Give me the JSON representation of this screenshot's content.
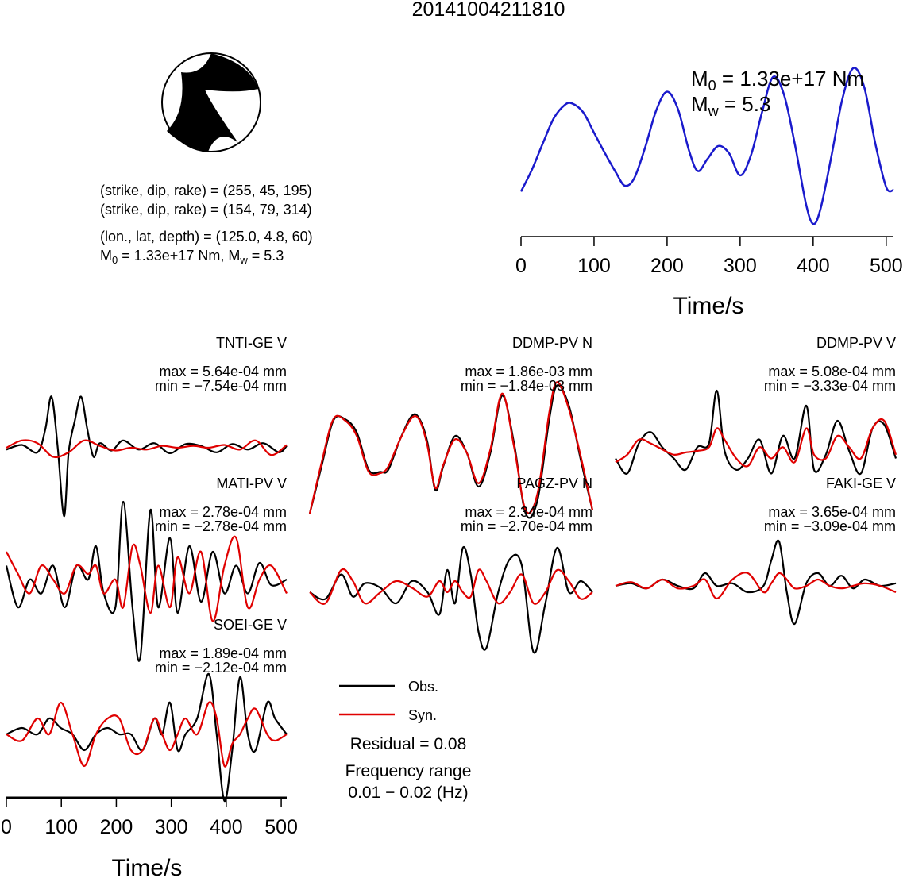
{
  "event_id": "20141004211810",
  "focal_mechanism": {
    "plane1": "(strike, dip, rake) = (255, 45, 195)",
    "plane2": "(strike, dip, rake) = (154, 79, 314)",
    "location": "(lon., lat, depth) = (125.0, 4.8, 60)",
    "moment_prefix": "M",
    "moment_sub": "0",
    "moment_text": " = 1.33e+17 Nm, M",
    "mw_sub": "w",
    "mw_text": " = 5.3"
  },
  "stf_annotation": {
    "m0_prefix": "M",
    "m0_sub": "0",
    "m0_text": " = 1.33e+17 Nm",
    "mw_prefix": "M",
    "mw_sub": "w",
    "mw_text": " = 5.3"
  },
  "legend": {
    "obs_label": "Obs.",
    "syn_label": "Syn.",
    "obs_color": "#000000",
    "syn_color": "#e00000",
    "residual": "Residual = 0.08",
    "freq_title": "Frequency range",
    "freq_range": "0.01 − 0.02 (Hz)"
  },
  "chart_data": [
    {
      "type": "line",
      "title": "",
      "xlabel": "Time/s",
      "ylabel": "",
      "xlim": [
        0,
        510
      ],
      "xticks": [
        "0",
        "100",
        "200",
        "300",
        "400",
        "500"
      ],
      "series": [
        {
          "color": "#1a1acc",
          "x": [
            0,
            15,
            30,
            45,
            60,
            70,
            85,
            100,
            115,
            130,
            142,
            155,
            170,
            185,
            200,
            215,
            230,
            242,
            255,
            270,
            285,
            300,
            315,
            330,
            345,
            360,
            375,
            390,
            400,
            410,
            425,
            440,
            455,
            470,
            485,
            500,
            510
          ],
          "y": [
            0.22,
            0.37,
            0.55,
            0.72,
            0.81,
            0.82,
            0.76,
            0.62,
            0.48,
            0.35,
            0.26,
            0.31,
            0.52,
            0.77,
            0.9,
            0.78,
            0.5,
            0.36,
            0.44,
            0.53,
            0.48,
            0.33,
            0.47,
            0.76,
            1.0,
            0.88,
            0.54,
            0.14,
            0.0,
            0.1,
            0.46,
            0.85,
            1.06,
            0.93,
            0.55,
            0.25,
            0.23
          ]
        }
      ]
    },
    {
      "type": "line",
      "title": "TNTI-GE V",
      "max_label": "max = 5.64e-04 mm",
      "min_label": "min = −7.54e-04 mm",
      "series": [
        {
          "name": "Obs.",
          "color": "#000000",
          "x": [
            0,
            20,
            40,
            50,
            58,
            66,
            74,
            80,
            88,
            96,
            104,
            112,
            120,
            135,
            150,
            170,
            190,
            210,
            230,
            250,
            270,
            290,
            310,
            330,
            350,
            360
          ],
          "y": [
            -0.02,
            0.03,
            -0.05,
            0.2,
            0.56,
            0.0,
            -0.75,
            -0.05,
            0.3,
            0.56,
            0.2,
            -0.1,
            0.05,
            -0.03,
            0.08,
            -0.02,
            0.05,
            -0.06,
            0.04,
            0.02,
            -0.05,
            0.04,
            -0.02,
            0.05,
            -0.05,
            0.02
          ]
        },
        {
          "name": "Syn.",
          "color": "#e00000",
          "x": [
            0,
            20,
            40,
            60,
            80,
            100,
            120,
            140,
            160,
            180,
            200,
            220,
            240,
            260,
            280,
            300,
            320,
            340,
            360
          ],
          "y": [
            0.0,
            0.08,
            0.05,
            -0.1,
            -0.05,
            0.08,
            0.02,
            -0.03,
            0.0,
            -0.02,
            0.02,
            0.0,
            0.02,
            0.0,
            0.03,
            -0.02,
            0.08,
            -0.08,
            0.03
          ]
        }
      ]
    },
    {
      "type": "line",
      "title": "DDMP-PV N",
      "max_label": "max = 1.86e-03 mm",
      "min_label": "min = −1.84e-03 mm",
      "series": [
        {
          "name": "Obs.",
          "color": "#000000",
          "x": [
            0,
            15,
            30,
            45,
            60,
            75,
            90,
            100,
            115,
            130,
            140,
            150,
            160,
            170,
            185,
            200,
            215,
            230,
            245,
            260,
            275,
            290,
            305,
            315,
            330,
            345,
            360
          ],
          "y": [
            -1.0,
            -0.3,
            0.38,
            0.4,
            0.2,
            -0.35,
            -0.38,
            -0.35,
            0.1,
            0.45,
            0.4,
            0.05,
            -0.65,
            -0.3,
            0.15,
            -0.1,
            -0.6,
            -0.1,
            0.75,
            0.05,
            -1.0,
            -0.8,
            0.4,
            0.9,
            0.6,
            -0.2,
            -0.95
          ]
        },
        {
          "name": "Syn.",
          "color": "#e00000",
          "x": [
            0,
            15,
            30,
            45,
            60,
            75,
            90,
            100,
            115,
            130,
            140,
            150,
            160,
            170,
            185,
            200,
            215,
            230,
            245,
            260,
            275,
            290,
            305,
            315,
            330,
            345,
            360
          ],
          "y": [
            -1.0,
            -0.25,
            0.4,
            0.38,
            0.15,
            -0.38,
            -0.4,
            -0.3,
            0.1,
            0.42,
            0.38,
            0.0,
            -0.62,
            -0.28,
            0.1,
            -0.1,
            -0.55,
            -0.05,
            0.78,
            0.0,
            -0.95,
            -0.7,
            0.5,
            0.95,
            0.55,
            -0.15,
            -0.95
          ]
        }
      ]
    },
    {
      "type": "line",
      "title": "DDMP-PV V",
      "max_label": "max = 5.08e-04 mm",
      "min_label": "min = −3.33e-04 mm",
      "series": [
        {
          "name": "Obs.",
          "color": "#000000",
          "x": [
            0,
            15,
            30,
            45,
            60,
            75,
            90,
            105,
            120,
            130,
            140,
            155,
            170,
            185,
            200,
            215,
            230,
            245,
            255,
            270,
            285,
            300,
            315,
            330,
            345,
            360
          ],
          "y": [
            -0.1,
            -0.3,
            0.1,
            0.25,
            0.05,
            -0.1,
            -0.25,
            0.05,
            0.1,
            0.8,
            0.0,
            -0.25,
            -0.1,
            0.15,
            -0.3,
            0.2,
            -0.1,
            0.6,
            -0.25,
            -0.05,
            0.4,
            0.0,
            -0.3,
            0.3,
            0.35,
            -0.1
          ]
        },
        {
          "name": "Syn.",
          "color": "#e00000",
          "x": [
            0,
            15,
            30,
            45,
            60,
            75,
            90,
            105,
            120,
            130,
            140,
            155,
            170,
            185,
            200,
            215,
            230,
            245,
            255,
            270,
            285,
            300,
            315,
            330,
            345,
            360
          ],
          "y": [
            -0.15,
            -0.05,
            0.15,
            0.1,
            0.02,
            -0.05,
            -0.02,
            0.0,
            0.05,
            0.3,
            0.15,
            -0.1,
            -0.2,
            0.05,
            -0.1,
            0.05,
            -0.15,
            0.3,
            -0.05,
            -0.1,
            0.2,
            0.05,
            -0.1,
            0.3,
            0.4,
            -0.05
          ]
        }
      ]
    },
    {
      "type": "line",
      "title": "MATI-PV V",
      "max_label": "max = 2.78e-04 mm",
      "min_label": "min = −2.78e-04 mm",
      "series": [
        {
          "name": "Obs.",
          "color": "#000000",
          "x": [
            0,
            15,
            30,
            45,
            60,
            75,
            90,
            105,
            115,
            125,
            140,
            150,
            162,
            172,
            185,
            195,
            210,
            220,
            235,
            250,
            265,
            280,
            295,
            310,
            325,
            340,
            360
          ],
          "y": [
            0.05,
            -0.1,
            0.0,
            -0.05,
            0.05,
            -0.1,
            0.05,
            0.0,
            0.12,
            -0.05,
            -0.1,
            0.28,
            -0.1,
            -0.28,
            0.25,
            -0.1,
            0.15,
            -0.12,
            0.12,
            -0.08,
            0.1,
            -0.05,
            0.05,
            -0.05,
            0.06,
            -0.02,
            0.0
          ]
        },
        {
          "name": "Syn.",
          "color": "#e00000",
          "x": [
            0,
            15,
            30,
            45,
            60,
            75,
            90,
            105,
            115,
            125,
            140,
            150,
            162,
            172,
            185,
            195,
            210,
            220,
            235,
            250,
            265,
            280,
            295,
            310,
            325,
            340,
            360
          ],
          "y": [
            0.1,
            0.02,
            -0.05,
            0.05,
            0.0,
            -0.05,
            0.05,
            0.02,
            0.05,
            -0.05,
            0.0,
            -0.1,
            0.12,
            0.05,
            -0.12,
            0.05,
            -0.1,
            0.08,
            -0.05,
            0.1,
            -0.15,
            0.05,
            0.15,
            -0.1,
            0.0,
            0.05,
            -0.05
          ]
        }
      ]
    },
    {
      "type": "line",
      "title": "PAGZ-PV N",
      "max_label": "max = 2.34e-04 mm",
      "min_label": "min = −2.70e-04 mm",
      "series": [
        {
          "name": "Obs.",
          "color": "#000000",
          "x": [
            0,
            20,
            40,
            55,
            70,
            90,
            110,
            130,
            150,
            165,
            175,
            185,
            195,
            205,
            215,
            225,
            240,
            255,
            270,
            285,
            300,
            315,
            330,
            345,
            360
          ],
          "y": [
            0.0,
            -0.03,
            0.08,
            -0.02,
            0.04,
            0.02,
            -0.05,
            0.05,
            0.0,
            -0.1,
            0.1,
            -0.05,
            0.2,
            0.08,
            -0.18,
            -0.25,
            0.0,
            0.15,
            0.12,
            -0.27,
            -0.05,
            0.2,
            0.0,
            0.05,
            0.0
          ]
        },
        {
          "name": "Syn.",
          "color": "#e00000",
          "x": [
            0,
            20,
            40,
            55,
            70,
            90,
            110,
            130,
            150,
            165,
            175,
            185,
            195,
            205,
            215,
            225,
            240,
            255,
            270,
            285,
            300,
            315,
            330,
            345,
            360
          ],
          "y": [
            0.0,
            -0.05,
            0.1,
            0.05,
            -0.05,
            0.0,
            0.05,
            0.02,
            -0.02,
            0.05,
            0.0,
            0.05,
            0.0,
            -0.02,
            0.1,
            0.05,
            -0.05,
            0.0,
            0.08,
            -0.05,
            0.0,
            0.1,
            0.05,
            -0.03,
            0.0
          ]
        }
      ]
    },
    {
      "type": "line",
      "title": "FAKI-GE V",
      "max_label": "max = 3.65e-04 mm",
      "min_label": "min = −3.09e-04 mm",
      "series": [
        {
          "name": "Obs.",
          "color": "#000000",
          "x": [
            0,
            20,
            40,
            60,
            80,
            100,
            115,
            130,
            150,
            170,
            190,
            200,
            210,
            220,
            230,
            245,
            260,
            275,
            290,
            305,
            320,
            340,
            360
          ],
          "y": [
            0.0,
            0.02,
            -0.02,
            0.05,
            0.0,
            -0.02,
            0.1,
            0.0,
            0.02,
            -0.05,
            0.0,
            0.2,
            0.35,
            -0.05,
            -0.3,
            0.02,
            0.1,
            0.0,
            0.08,
            -0.02,
            0.05,
            0.0,
            0.02
          ]
        },
        {
          "name": "Syn.",
          "color": "#e00000",
          "x": [
            0,
            20,
            40,
            60,
            80,
            100,
            115,
            130,
            150,
            170,
            190,
            200,
            210,
            220,
            230,
            245,
            260,
            275,
            290,
            305,
            320,
            340,
            360
          ],
          "y": [
            0.0,
            0.03,
            -0.02,
            0.05,
            -0.02,
            0.0,
            0.05,
            -0.1,
            0.05,
            0.1,
            -0.05,
            0.02,
            0.1,
            0.05,
            -0.02,
            0.0,
            0.05,
            0.0,
            -0.02,
            0.0,
            0.02,
            0.0,
            -0.05
          ]
        }
      ]
    },
    {
      "type": "line",
      "title": "SOEI-GE V",
      "max_label": "max = 1.89e-04 mm",
      "min_label": "min = −2.12e-04 mm",
      "xlabel": "Time/s",
      "xlim": [
        0,
        510
      ],
      "xticks": [
        "0",
        "100",
        "200",
        "300",
        "400",
        "500"
      ],
      "series": [
        {
          "name": "Obs.",
          "color": "#000000",
          "x": [
            0,
            20,
            40,
            55,
            70,
            85,
            100,
            115,
            130,
            145,
            160,
            175,
            190,
            200,
            210,
            220,
            230,
            245,
            260,
            270,
            280,
            290,
            300,
            310,
            320,
            335,
            345,
            360
          ],
          "y": [
            0.0,
            0.02,
            0.0,
            0.05,
            0.02,
            0.0,
            -0.05,
            0.0,
            0.02,
            0.0,
            0.0,
            -0.05,
            0.05,
            0.0,
            0.1,
            -0.05,
            0.0,
            0.05,
            0.19,
            0.0,
            -0.21,
            -0.05,
            0.18,
            0.0,
            -0.05,
            0.1,
            0.05,
            0.0
          ]
        },
        {
          "name": "Syn.",
          "color": "#e00000",
          "x": [
            0,
            20,
            40,
            55,
            70,
            85,
            100,
            115,
            130,
            145,
            160,
            175,
            190,
            200,
            210,
            220,
            230,
            245,
            260,
            270,
            280,
            290,
            300,
            310,
            320,
            335,
            345,
            360
          ],
          "y": [
            0.0,
            -0.02,
            0.05,
            0.0,
            0.1,
            0.0,
            -0.1,
            0.0,
            0.05,
            0.05,
            -0.05,
            -0.05,
            0.05,
            0.0,
            -0.05,
            0.0,
            0.05,
            0.0,
            0.1,
            0.05,
            -0.1,
            -0.03,
            0.0,
            0.05,
            0.08,
            0.0,
            -0.02,
            0.0
          ]
        }
      ]
    }
  ]
}
